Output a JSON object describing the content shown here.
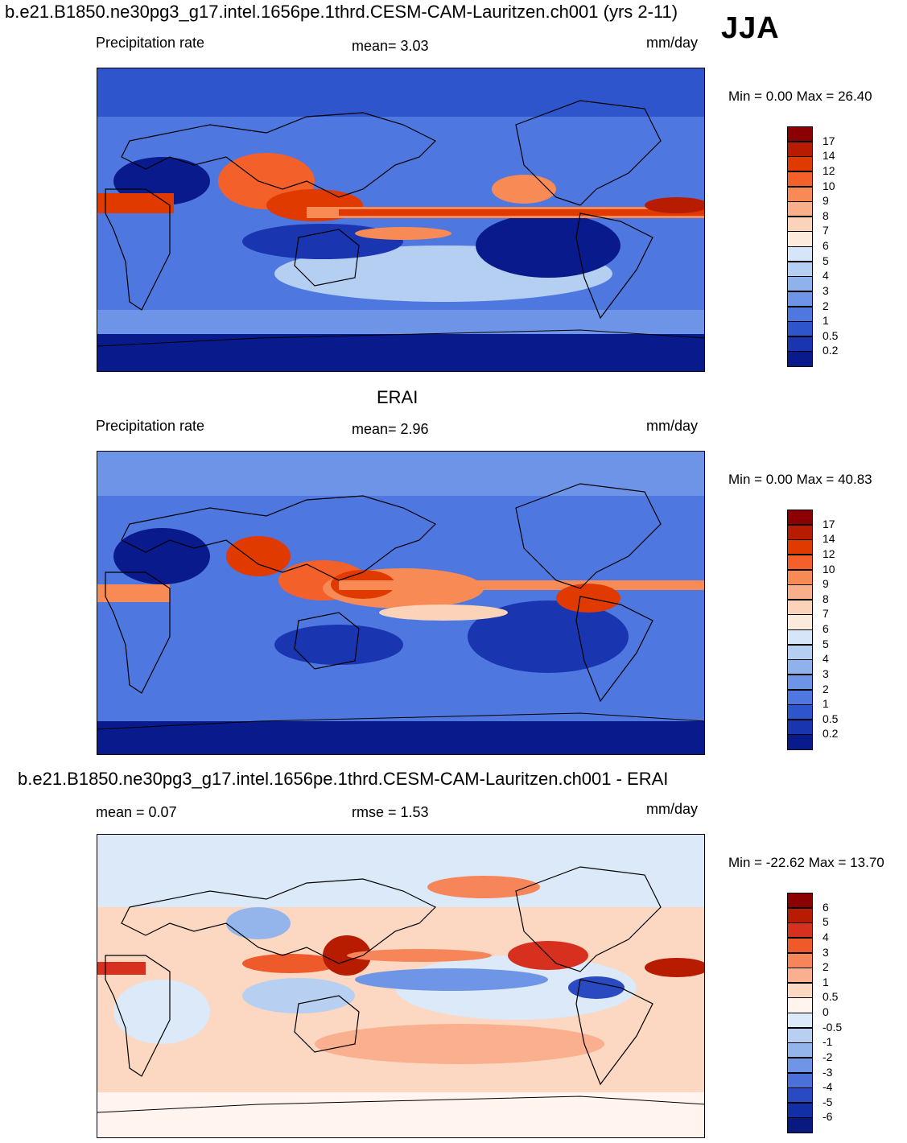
{
  "header": {
    "run_title": "b.e21.B1850.ne30pg3_g17.intel.1656pe.1thrd.CESM-CAM-Lauritzen.ch001 (yrs 2-11)",
    "season": "JJA"
  },
  "panels": [
    {
      "left_label": "Precipitation rate",
      "center_label": "mean=   3.03",
      "right_label": "mm/day",
      "minmax": "Min =    0.00 Max =  26.40",
      "colorbar_ticks": [
        "17",
        "14",
        "12",
        "10",
        "9",
        "8",
        "7",
        "6",
        "5",
        "4",
        "3",
        "2",
        "1",
        "0.5",
        "0.2"
      ],
      "colorbar_colors": [
        "#8b0000",
        "#b71c00",
        "#e03a00",
        "#f4602a",
        "#f78a55",
        "#f9b08a",
        "#fbd3b8",
        "#fcebdc",
        "#d6e6f8",
        "#b4cff2",
        "#8fb2ec",
        "#6e94e8",
        "#4f77e0",
        "#2f55cc",
        "#1a35b0",
        "#081a8c"
      ]
    },
    {
      "title": "ERAI",
      "left_label": "Precipitation rate",
      "center_label": "mean=   2.96",
      "right_label": "mm/day",
      "minmax": "Min =    0.00 Max =  40.83",
      "colorbar_ticks": [
        "17",
        "14",
        "12",
        "10",
        "9",
        "8",
        "7",
        "6",
        "5",
        "4",
        "3",
        "2",
        "1",
        "0.5",
        "0.2"
      ],
      "colorbar_colors": [
        "#8b0000",
        "#b71c00",
        "#e03a00",
        "#f4602a",
        "#f78a55",
        "#f9b08a",
        "#fbd3b8",
        "#fcebdc",
        "#d6e6f8",
        "#b4cff2",
        "#8fb2ec",
        "#6e94e8",
        "#4f77e0",
        "#2f55cc",
        "#1a35b0",
        "#081a8c"
      ]
    },
    {
      "title": "b.e21.B1850.ne30pg3_g17.intel.1656pe.1thrd.CESM-CAM-Lauritzen.ch001 - ERAI",
      "left_label": "mean =   0.07",
      "center_label": "rmse =    1.53",
      "right_label": "mm/day",
      "minmax": "Min = -22.62 Max =  13.70",
      "colorbar_ticks": [
        "6",
        "5",
        "4",
        "3",
        "2",
        "1",
        "0.5",
        "0",
        "-0.5",
        "-1",
        "-2",
        "-3",
        "-4",
        "-5",
        "-6"
      ],
      "colorbar_colors": [
        "#8b0000",
        "#b71c00",
        "#d7301f",
        "#ef5a2a",
        "#f7855a",
        "#fab08f",
        "#fcd8c2",
        "#fff5ee",
        "#dbe9f8",
        "#b7d0f2",
        "#93b5ec",
        "#6f95e6",
        "#4b70d8",
        "#2a4ac2",
        "#1230a6",
        "#081a80"
      ]
    }
  ]
}
